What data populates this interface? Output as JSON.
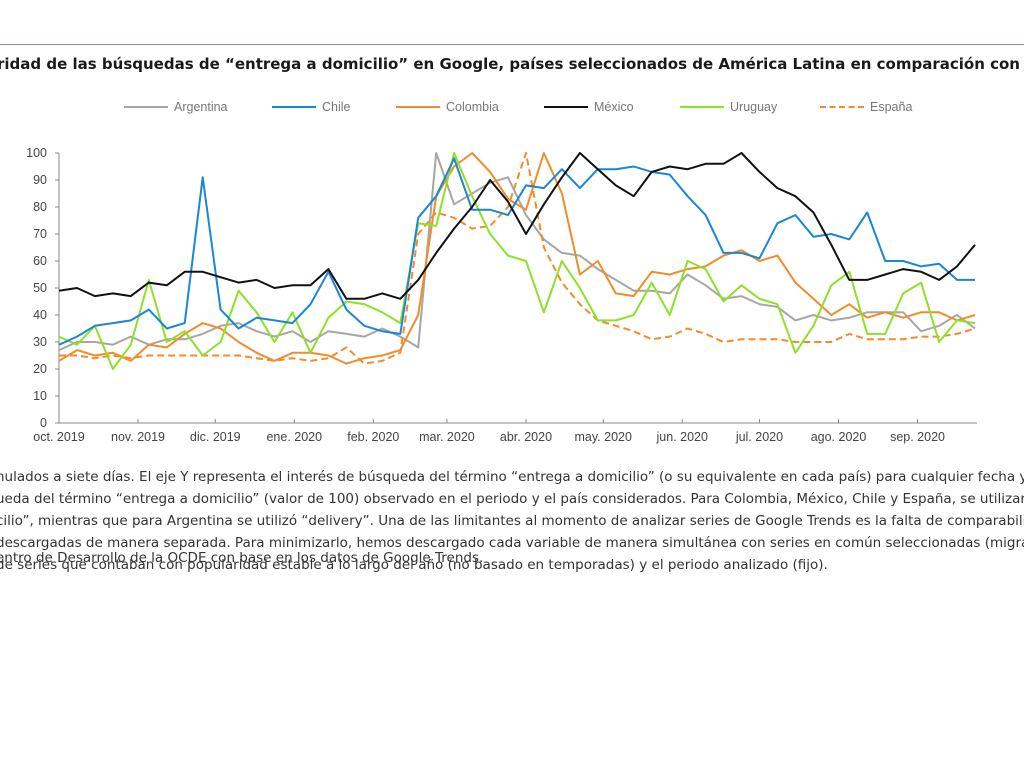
{
  "figure": {
    "title": "ridad de las búsquedas de “entrega a domicilio” en Google, países seleccionados de América Latina en comparación con",
    "notes": [
      "nulados a siete días. El eje Y representa el interés de búsqueda del término “entrega a domicilio” (o su equivalente en cada país) para cualquier fecha y pa",
      "ueda del término “entrega a domicilio” (valor de 100) observado en el periodo y el país considerados. Para Colombia, México, Chile y España, se utilizaron",
      "cilio”, mientras que para Argentina se utilizó “delivery”. Una de las limitantes al momento de analizar series de Google Trends es la falta de comparabilidad",
      "descargadas de manera separada. Para minimizarlo, hemos descargado cada variable de manera simultánea con series en común seleccionadas (migraña",
      "de series que contaban con popularidad estable a lo largo del año (no basado en temporadas) y el periodo analizado (fijo)."
    ],
    "source": "entro de Desarrollo de la OCDE con base en los datos de Google Trends."
  },
  "chart_data": {
    "type": "line",
    "title": "",
    "xlabel": "",
    "ylabel": "",
    "ylim": [
      0,
      100
    ],
    "yticks": [
      0,
      10,
      20,
      30,
      40,
      50,
      60,
      70,
      80,
      90,
      100
    ],
    "grid": false,
    "legend_position": "top",
    "x_count": 52,
    "x_unit": "week",
    "xtick_labels": [
      {
        "index": 0,
        "label": "oct. 2019"
      },
      {
        "index": 4.4,
        "label": "nov. 2019"
      },
      {
        "index": 8.7,
        "label": "dic. 2019"
      },
      {
        "index": 13.1,
        "label": "ene. 2020"
      },
      {
        "index": 17.5,
        "label": "feb. 2020"
      },
      {
        "index": 21.6,
        "label": "mar. 2020"
      },
      {
        "index": 26,
        "label": "abr. 2020"
      },
      {
        "index": 30.3,
        "label": "may. 2020"
      },
      {
        "index": 34.7,
        "label": "jun. 2020"
      },
      {
        "index": 39,
        "label": "jul. 2020"
      },
      {
        "index": 43.4,
        "label": "ago. 2020"
      },
      {
        "index": 47.8,
        "label": "sep. 2020"
      }
    ],
    "series": [
      {
        "name": "Argentina",
        "color": "#a6a6a6",
        "dashed": false,
        "values": [
          27,
          30,
          30,
          29,
          32,
          29,
          31,
          31,
          33,
          36,
          37,
          34,
          32,
          34,
          30,
          34,
          33,
          32,
          35,
          32,
          28,
          100,
          81,
          85,
          89,
          91,
          77,
          68,
          63,
          62,
          57,
          53,
          49,
          49,
          48,
          55,
          51,
          46,
          47,
          44,
          43,
          38,
          40,
          38,
          39,
          41,
          41,
          41,
          34,
          36,
          40,
          35
        ]
      },
      {
        "name": "Chile",
        "color": "#1a86d8",
        "dashed": false,
        "values": [
          29,
          32,
          36,
          37,
          38,
          42,
          35,
          37,
          91,
          42,
          35,
          39,
          38,
          37,
          44,
          56,
          42,
          36,
          34,
          33,
          76,
          84,
          98,
          79,
          79,
          77,
          88,
          87,
          94,
          87,
          94,
          94,
          95,
          93,
          92,
          84,
          77,
          63,
          63,
          61,
          74,
          77,
          69,
          70,
          68,
          78,
          60,
          60,
          58,
          59,
          53,
          53
        ]
      },
      {
        "name": "Colombia",
        "color": "#f28c28",
        "dashed": false,
        "values": [
          23,
          27,
          25,
          26,
          23,
          29,
          28,
          33,
          37,
          35,
          30,
          26,
          23,
          26,
          26,
          25,
          22,
          24,
          25,
          27,
          40,
          84,
          95,
          100,
          93,
          83,
          79,
          100,
          85,
          55,
          60,
          48,
          47,
          56,
          55,
          57,
          58,
          62,
          64,
          60,
          62,
          52,
          46,
          40,
          44,
          39,
          41,
          39,
          41,
          41,
          38,
          40
        ]
      },
      {
        "name": "México",
        "color": "#111111",
        "dashed": false,
        "values": [
          49,
          50,
          47,
          48,
          47,
          52,
          51,
          56,
          56,
          54,
          52,
          53,
          50,
          51,
          51,
          57,
          46,
          46,
          48,
          46,
          53,
          63,
          72,
          80,
          90,
          82,
          70,
          81,
          91,
          100,
          94,
          88,
          84,
          93,
          95,
          94,
          96,
          96,
          100,
          93,
          87,
          84,
          78,
          66,
          53,
          53,
          55,
          57,
          56,
          53,
          58,
          66
        ]
      },
      {
        "name": "Uruguay",
        "color": "#8fe028",
        "dashed": false,
        "values": [
          32,
          29,
          36,
          20,
          29,
          53,
          30,
          34,
          25,
          30,
          49,
          41,
          30,
          41,
          26,
          39,
          45,
          44,
          41,
          37,
          74,
          73,
          100,
          84,
          70,
          62,
          60,
          41,
          60,
          50,
          38,
          38,
          40,
          52,
          40,
          60,
          57,
          45,
          51,
          46,
          44,
          26,
          36,
          51,
          56,
          33,
          33,
          48,
          52,
          30,
          38,
          37
        ]
      },
      {
        "name": "España",
        "color": "#f28c28",
        "dashed": true,
        "values": [
          25,
          25,
          24,
          25,
          24,
          25,
          25,
          25,
          25,
          25,
          25,
          24,
          23,
          24,
          23,
          24,
          28,
          22,
          23,
          26,
          70,
          78,
          76,
          72,
          73,
          80,
          100,
          65,
          52,
          44,
          38,
          36,
          34,
          31,
          32,
          35,
          33,
          30,
          31,
          31,
          31,
          30,
          30,
          30,
          33,
          31,
          31,
          31,
          32,
          32,
          33,
          35
        ]
      }
    ]
  }
}
